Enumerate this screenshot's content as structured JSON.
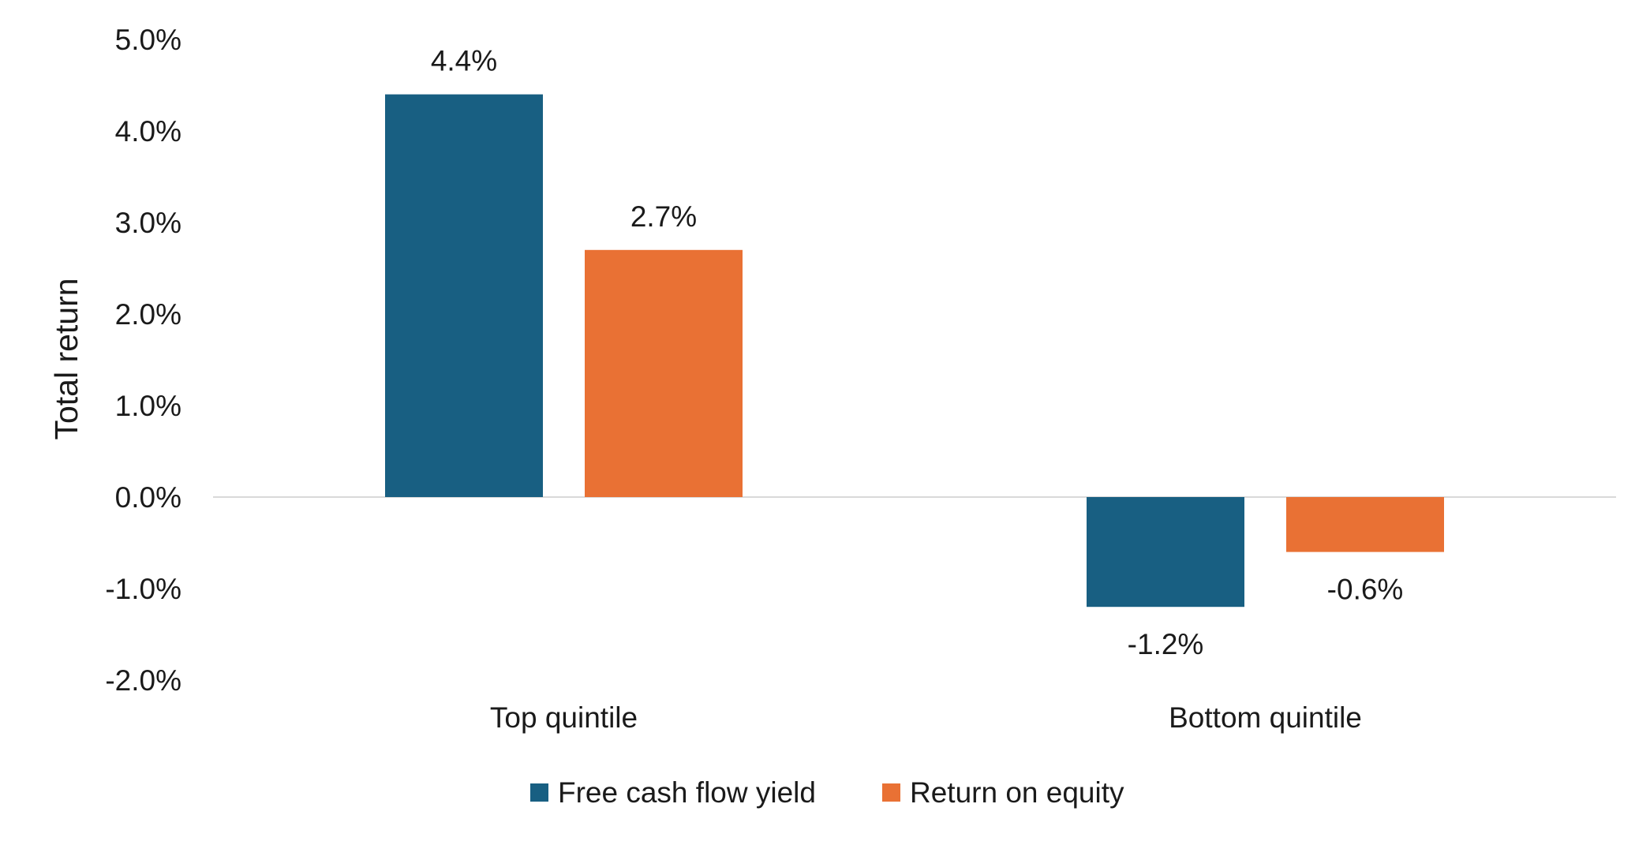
{
  "chart_data": {
    "type": "bar",
    "title": "",
    "xlabel": "",
    "ylabel": "Total return",
    "ylim": [
      -2.0,
      5.0
    ],
    "yticks": [
      5.0,
      4.0,
      3.0,
      2.0,
      1.0,
      0.0,
      -1.0,
      -2.0
    ],
    "ytick_labels": [
      "5.0%",
      "4.0%",
      "3.0%",
      "2.0%",
      "1.0%",
      "0.0%",
      "-1.0%",
      "-2.0%"
    ],
    "categories": [
      "Top quintile",
      "Bottom quintile"
    ],
    "series": [
      {
        "name": "Free cash flow yield",
        "color": "#185F82",
        "values": [
          4.4,
          -1.2
        ],
        "labels": [
          "4.4%",
          "-1.2%"
        ]
      },
      {
        "name": "Return on equity",
        "color": "#E97134",
        "values": [
          2.7,
          -0.6
        ],
        "labels": [
          "2.7%",
          "-0.6%"
        ]
      }
    ],
    "grid": false,
    "legend": "bottom",
    "zero_line_color": "#D9D9D9"
  }
}
